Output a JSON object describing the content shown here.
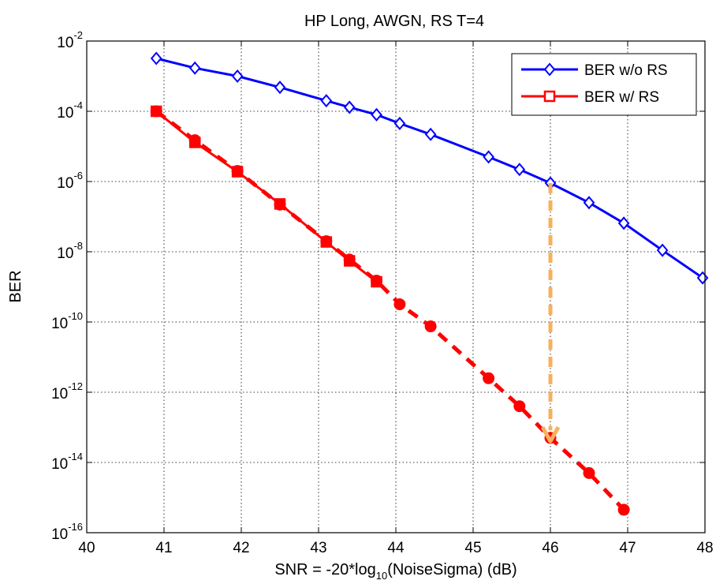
{
  "chart_data": {
    "type": "line",
    "title": "HP Long, AWGN, RS T=4",
    "xlabel": "SNR = -20*log10(NoiseSigma) (dB)",
    "ylabel": "BER",
    "xlim": [
      40,
      48
    ],
    "ylim": [
      1e-16,
      0.01
    ],
    "yscale": "log",
    "grid": true,
    "legend_position": "top-right",
    "x_ticks": [
      40,
      41,
      42,
      43,
      44,
      45,
      46,
      47,
      48
    ],
    "y_tick_exponents": [
      -16,
      -14,
      -12,
      -10,
      -8,
      -6,
      -4,
      -2
    ],
    "series": [
      {
        "name": "BER w/o RS",
        "color": "#0000ff",
        "marker": "diamond",
        "line": "solid",
        "points": [
          [
            40.9,
            0.0032
          ],
          [
            41.4,
            0.0017
          ],
          [
            41.95,
            0.001
          ],
          [
            42.5,
            0.00048
          ],
          [
            43.1,
            0.0002
          ],
          [
            43.4,
            0.00013
          ],
          [
            43.75,
            8e-05
          ],
          [
            44.05,
            4.5e-05
          ],
          [
            44.45,
            2.2e-05
          ],
          [
            45.2,
            5e-06
          ],
          [
            45.6,
            2.2e-06
          ],
          [
            46.0,
            9e-07
          ],
          [
            46.5,
            2.5e-07
          ],
          [
            46.95,
            6.5e-08
          ],
          [
            47.45,
            1.1e-08
          ],
          [
            47.97,
            1.8e-09
          ]
        ]
      },
      {
        "name": "BER w/ RS",
        "color": "#ff0000",
        "marker": "square",
        "line": "solid",
        "points": [
          [
            40.9,
            0.0001
          ],
          [
            41.4,
            1.3e-05
          ],
          [
            41.95,
            1.9e-06
          ],
          [
            42.5,
            2.3e-07
          ],
          [
            43.1,
            1.9e-08
          ],
          [
            43.4,
            5.5e-09
          ],
          [
            43.75,
            1.4e-09
          ]
        ]
      },
      {
        "color": "#ff0000",
        "marker": "circle",
        "line": "dashed",
        "points": [
          [
            40.9,
            0.0001
          ],
          [
            41.4,
            1.5e-05
          ],
          [
            41.95,
            2e-06
          ],
          [
            42.5,
            2.2e-07
          ],
          [
            43.1,
            2e-08
          ],
          [
            43.4,
            6e-09
          ],
          [
            43.75,
            1.5e-09
          ],
          [
            44.05,
            3.2e-10
          ],
          [
            44.45,
            7.5e-11
          ],
          [
            45.2,
            2.5e-12
          ],
          [
            45.6,
            4e-13
          ],
          [
            46.0,
            5e-14
          ],
          [
            46.5,
            5e-15
          ],
          [
            46.95,
            4.5e-16
          ]
        ]
      }
    ],
    "annotations": [
      {
        "type": "arrow",
        "color": "#f6b15e",
        "style": "dashed",
        "from": [
          46.0,
          9e-07
        ],
        "to": [
          46.0,
          4e-14
        ]
      }
    ]
  }
}
